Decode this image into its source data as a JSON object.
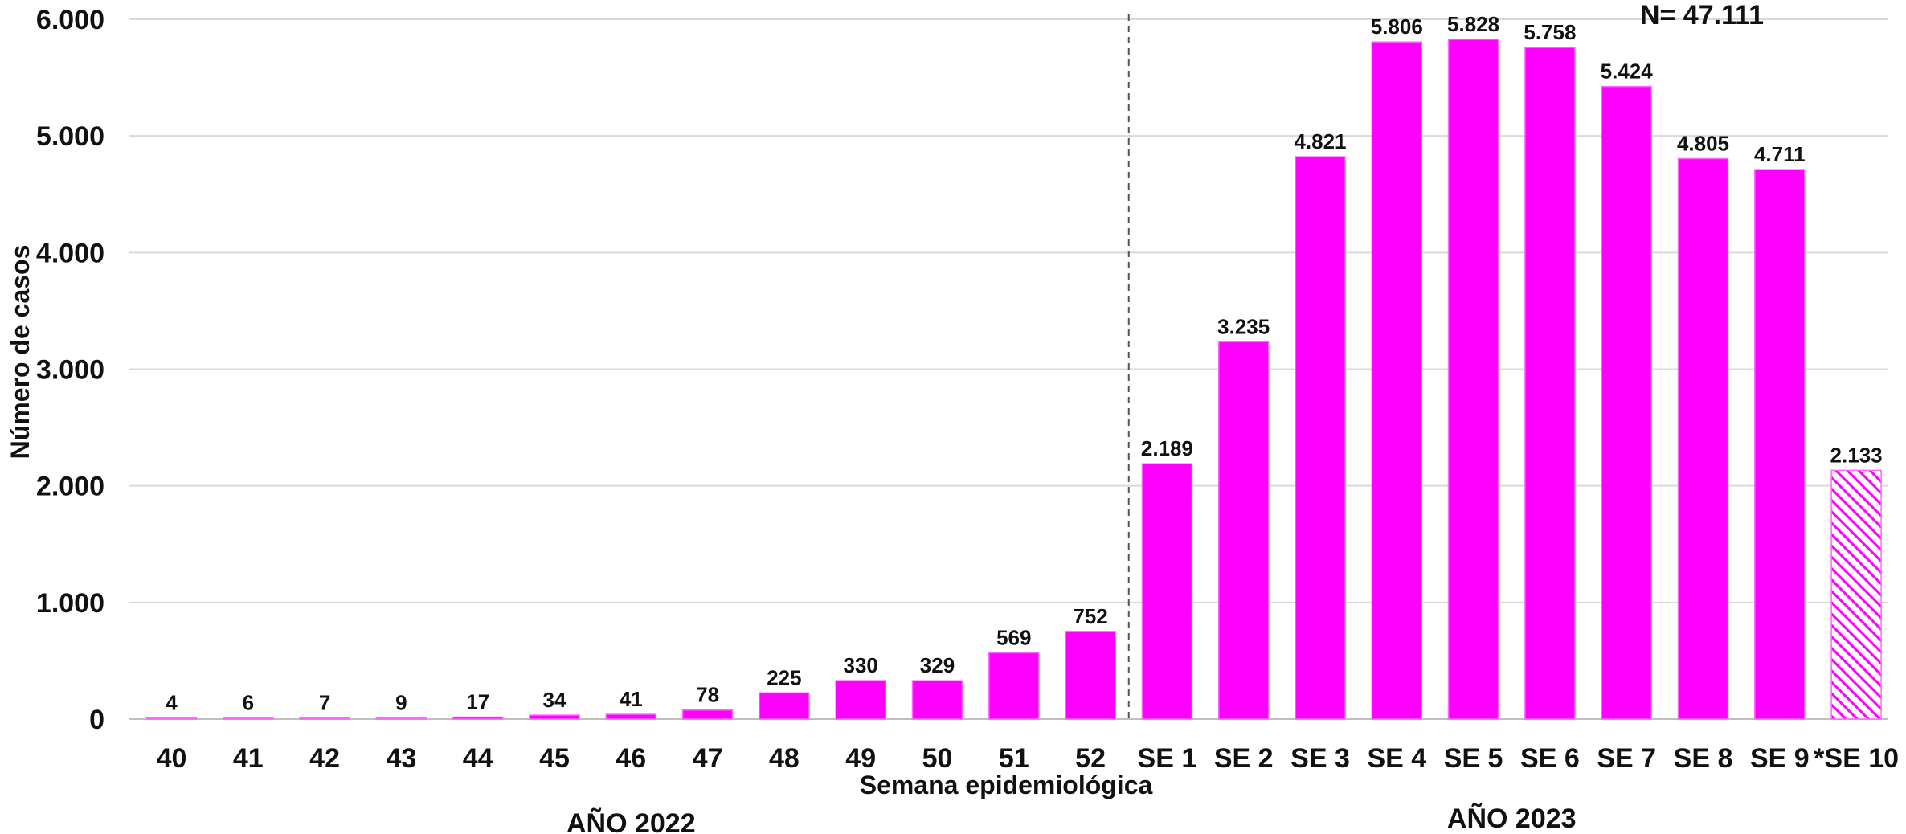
{
  "chart_data": {
    "type": "bar",
    "categories": [
      "40",
      "41",
      "42",
      "43",
      "44",
      "45",
      "46",
      "47",
      "48",
      "49",
      "50",
      "51",
      "52",
      "SE 1",
      "SE 2",
      "SE 3",
      "SE 4",
      "SE 5",
      "SE 6",
      "SE 7",
      "SE 8",
      "SE 9",
      "*SE 10"
    ],
    "values": [
      4,
      6,
      7,
      9,
      17,
      34,
      41,
      78,
      225,
      330,
      329,
      569,
      752,
      2189,
      3235,
      4821,
      5806,
      5828,
      5758,
      5424,
      4805,
      4711,
      2133
    ],
    "data_labels": [
      "4",
      "6",
      "7",
      "9",
      "17",
      "34",
      "41",
      "78",
      "225",
      "330",
      "329",
      "569",
      "752",
      "2.189",
      "3.235",
      "4.821",
      "5.806",
      "5.828",
      "5.758",
      "5.424",
      "4.805",
      "4.711",
      "2.133"
    ],
    "xlabel": "Semana epidemiológica",
    "ylabel": "Número de casos",
    "ylim": [
      0,
      6000
    ],
    "yticks": [
      0,
      1000,
      2000,
      3000,
      4000,
      5000,
      6000
    ],
    "ytick_labels": [
      "0",
      "1.000",
      "2.000",
      "3.000",
      "4.000",
      "5.000",
      "6.000"
    ],
    "grid": true,
    "bar_color": "#ff00ff",
    "hatched_last_bar": true,
    "groups": [
      {
        "label": "AÑO 2022",
        "from": 0,
        "to": 12
      },
      {
        "label": "AÑO 2023",
        "from": 13,
        "to": 22
      }
    ],
    "total_label": "N= 47.111"
  }
}
